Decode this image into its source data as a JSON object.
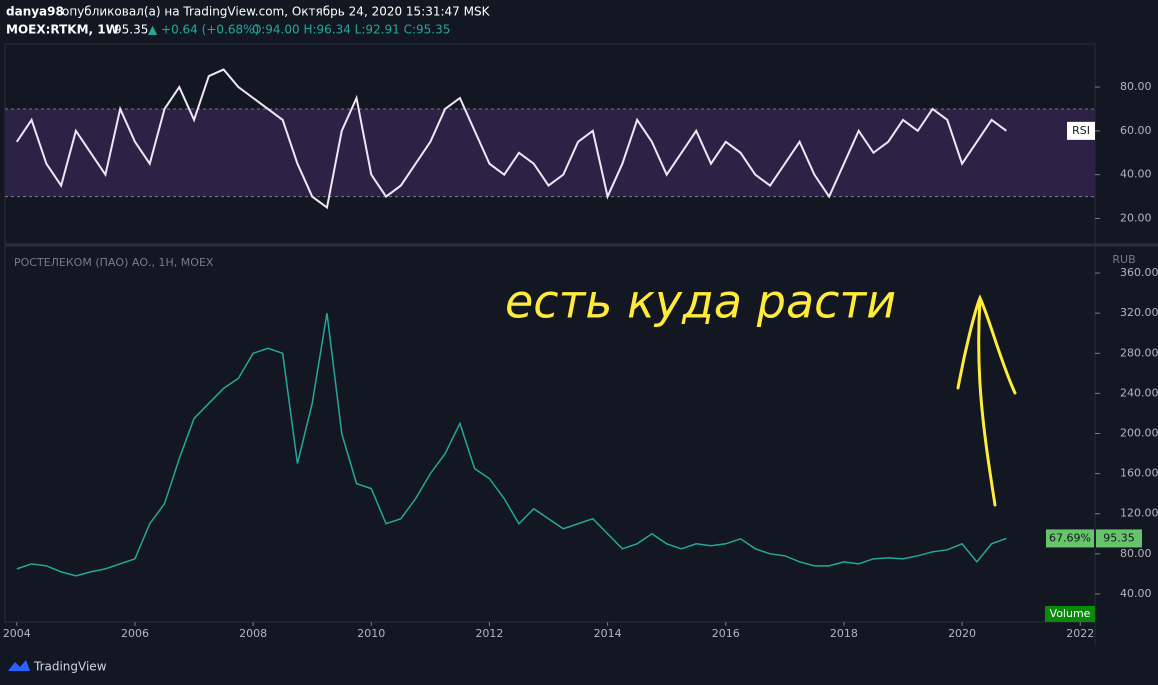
{
  "header": {
    "author": "danya98",
    "published": "опубликовал(а) на TradingView.com, Октябрь 24, 2020 15:31:47 MSK",
    "symbol": "MOEX:RTKM, 1W",
    "last": "95.35",
    "change": "▲ +0.64 (+0.68%)",
    "ohlc": "O:94.00 H:96.34 L:92.91 C:95.35"
  },
  "chart_data": [
    {
      "type": "line",
      "label": "RSI",
      "color": "#f3e5f5",
      "band_color": "#2d2146",
      "bands": [
        30,
        70
      ],
      "x": [
        2004,
        2004.25,
        2004.5,
        2004.75,
        2005,
        2005.25,
        2005.5,
        2005.75,
        2006,
        2006.25,
        2006.5,
        2006.75,
        2007,
        2007.25,
        2007.5,
        2007.75,
        2008,
        2008.25,
        2008.5,
        2008.75,
        2009,
        2009.25,
        2009.5,
        2009.75,
        2010,
        2010.25,
        2010.5,
        2010.75,
        2011,
        2011.25,
        2011.5,
        2011.75,
        2012,
        2012.25,
        2012.5,
        2012.75,
        2013,
        2013.25,
        2013.5,
        2013.75,
        2014,
        2014.25,
        2014.5,
        2014.75,
        2015,
        2015.25,
        2015.5,
        2015.75,
        2016,
        2016.25,
        2016.5,
        2016.75,
        2017,
        2017.25,
        2017.5,
        2017.75,
        2018,
        2018.25,
        2018.5,
        2018.75,
        2019,
        2019.25,
        2019.5,
        2019.75,
        2020,
        2020.25,
        2020.5,
        2020.75
      ],
      "values": [
        55,
        65,
        45,
        35,
        60,
        50,
        40,
        70,
        55,
        45,
        70,
        80,
        65,
        85,
        88,
        80,
        75,
        70,
        65,
        45,
        30,
        25,
        60,
        75,
        40,
        30,
        35,
        45,
        55,
        70,
        75,
        60,
        45,
        40,
        50,
        45,
        35,
        40,
        55,
        60,
        30,
        45,
        65,
        55,
        40,
        50,
        60,
        45,
        55,
        50,
        40,
        35,
        45,
        55,
        40,
        30,
        45,
        60,
        50,
        55,
        65,
        60,
        70,
        65,
        45,
        55,
        65,
        60
      ],
      "xlim": [
        2003.8,
        2022.25
      ],
      "ylim": [
        8.8,
        99.2
      ],
      "yticks": [
        {
          "value": 20,
          "label": "20.00"
        },
        {
          "value": 40,
          "label": "40.00"
        },
        {
          "value": 60,
          "label": "60.00"
        },
        {
          "value": 80,
          "label": "80.00"
        }
      ]
    },
    {
      "type": "line",
      "title": "РОСТЕЛЕКОМ (ПАО) АО., 1Н, MOEX",
      "unit": "RUB",
      "volume_label": "Volume",
      "change_label": "67.69%",
      "last_label": "95.35",
      "color": "#26a69a",
      "annotation": "есть куда расти",
      "x": [
        2004,
        2004.25,
        2004.5,
        2004.75,
        2005,
        2005.25,
        2005.5,
        2005.75,
        2006,
        2006.25,
        2006.5,
        2006.75,
        2007,
        2007.25,
        2007.5,
        2007.75,
        2008,
        2008.25,
        2008.5,
        2008.75,
        2009,
        2009.25,
        2009.5,
        2009.75,
        2010,
        2010.25,
        2010.5,
        2010.75,
        2011,
        2011.25,
        2011.5,
        2011.75,
        2012,
        2012.25,
        2012.5,
        2012.75,
        2013,
        2013.25,
        2013.5,
        2013.75,
        2014,
        2014.25,
        2014.5,
        2014.75,
        2015,
        2015.25,
        2015.5,
        2015.75,
        2016,
        2016.25,
        2016.5,
        2016.75,
        2017,
        2017.25,
        2017.5,
        2017.75,
        2018,
        2018.25,
        2018.5,
        2018.75,
        2019,
        2019.25,
        2019.5,
        2019.75,
        2020,
        2020.25,
        2020.5,
        2020.75
      ],
      "values": [
        65,
        70,
        68,
        62,
        58,
        62,
        65,
        70,
        75,
        110,
        130,
        175,
        215,
        230,
        245,
        255,
        280,
        285,
        280,
        170,
        230,
        320,
        200,
        150,
        145,
        110,
        115,
        135,
        160,
        180,
        210,
        165,
        155,
        135,
        110,
        125,
        115,
        105,
        110,
        115,
        100,
        85,
        90,
        100,
        90,
        85,
        90,
        88,
        90,
        95,
        85,
        80,
        78,
        72,
        68,
        68,
        72,
        70,
        75,
        76,
        75,
        78,
        82,
        84,
        90,
        72,
        90,
        95.35
      ],
      "xlim": [
        2003.8,
        2022.25
      ],
      "ylim": [
        12,
        385
      ],
      "xticks": [
        2004,
        2006,
        2008,
        2010,
        2012,
        2014,
        2016,
        2018,
        2020,
        2022
      ],
      "yticks": [
        {
          "value": 40,
          "label": "40.00"
        },
        {
          "value": 80,
          "label": "80.00"
        },
        {
          "value": 120,
          "label": "120.00"
        },
        {
          "value": 160,
          "label": "160.00"
        },
        {
          "value": 200,
          "label": "200.00"
        },
        {
          "value": 240,
          "label": "240.00"
        },
        {
          "value": 280,
          "label": "280.00"
        },
        {
          "value": 320,
          "label": "320.00"
        },
        {
          "value": 360,
          "label": "360.00"
        }
      ]
    }
  ]
}
